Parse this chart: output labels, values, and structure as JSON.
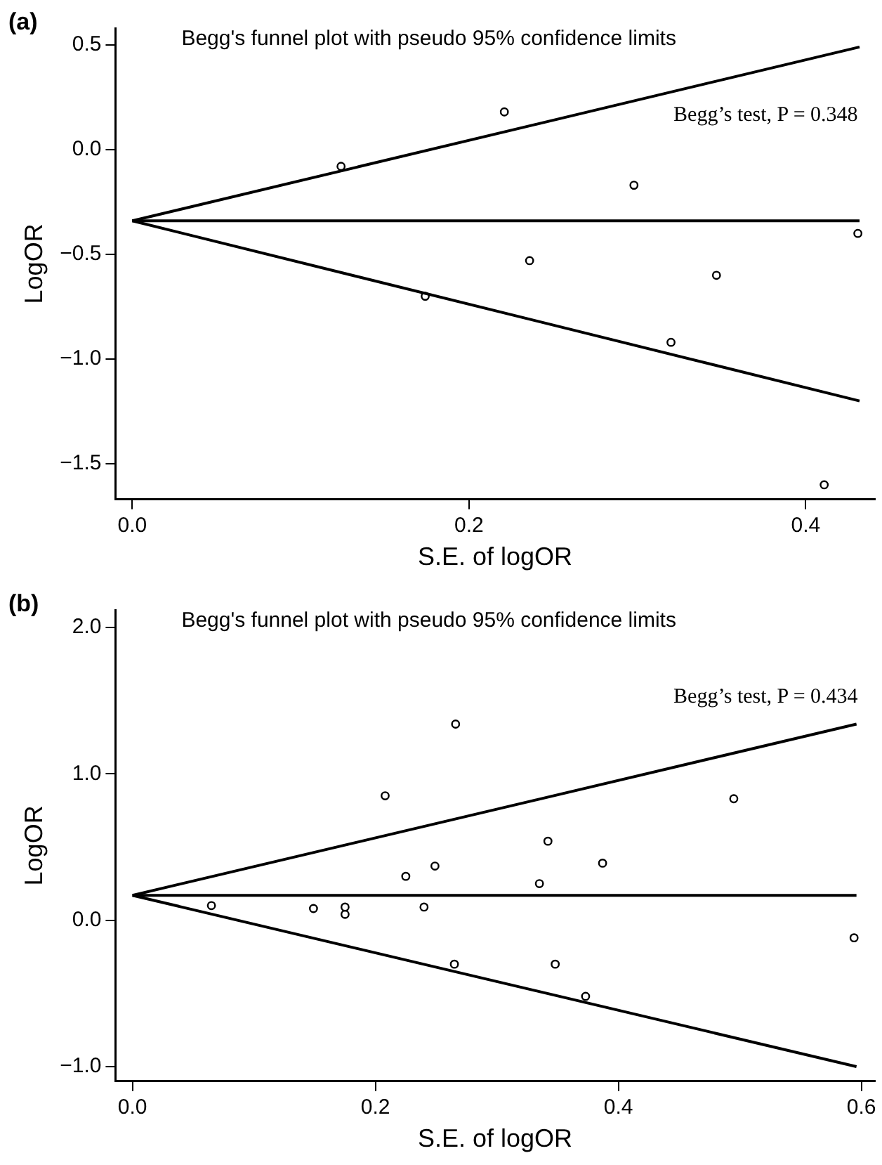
{
  "chart_data": [
    {
      "type": "scatter",
      "title": "Begg's funnel plot with pseudo 95% confidence limits",
      "xlabel": "S.E. of logOR",
      "ylabel": "LogOR",
      "annotations": [
        "(a)",
        "Begg’s test, P = 0.348"
      ],
      "xlim": [
        -0.01,
        0.441
      ],
      "ylim": [
        -1.67,
        0.58
      ],
      "xticks": [
        {
          "value": 0,
          "label": "0.0"
        },
        {
          "value": 0.2,
          "label": "0.2"
        },
        {
          "value": 0.4,
          "label": "0.4"
        }
      ],
      "yticks": [
        {
          "value": 0.5,
          "label": "0.5"
        },
        {
          "value": 0,
          "label": "0.0"
        },
        {
          "value": -0.5,
          "label": "−0.5"
        },
        {
          "value": -1,
          "label": "−1.0"
        },
        {
          "value": -1.5,
          "label": "−1.5"
        }
      ],
      "grid": false,
      "legend": false,
      "series": [
        {
          "marker": "circle",
          "color": "#000000",
          "x": [
            0.124,
            0.221,
            0.174,
            0.236,
            0.298,
            0.32,
            0.347,
            0.431,
            0.411
          ],
          "values": [
            -0.08,
            0.18,
            -0.7,
            -0.53,
            -0.17,
            -0.92,
            -0.6,
            -0.4,
            -1.6
          ]
        },
        {
          "type": "line",
          "marker": "none",
          "color": "#000000",
          "x": [
            0,
            0.432
          ],
          "values": [
            -0.34,
            0.49
          ]
        },
        {
          "type": "line",
          "marker": "none",
          "color": "#000000",
          "x": [
            0,
            0.432
          ],
          "values": [
            -0.34,
            -0.34
          ]
        },
        {
          "type": "line",
          "marker": "none",
          "color": "#000000",
          "x": [
            0,
            0.432
          ],
          "values": [
            -0.34,
            -1.2
          ]
        }
      ]
    },
    {
      "type": "scatter",
      "title": "Begg's funnel plot with pseudo 95% confidence limits",
      "xlabel": "S.E. of logOR",
      "ylabel": "LogOR",
      "annotations": [
        "(b)",
        "Begg’s test, P = 0.434"
      ],
      "xlim": [
        -0.014,
        0.611
      ],
      "ylim": [
        -1.1,
        2.12
      ],
      "xticks": [
        {
          "value": 0,
          "label": "0.0"
        },
        {
          "value": 0.2,
          "label": "0.2"
        },
        {
          "value": 0.4,
          "label": "0.4"
        },
        {
          "value": 0.6,
          "label": "0.6"
        }
      ],
      "yticks": [
        {
          "value": 2,
          "label": "2.0"
        },
        {
          "value": 1,
          "label": "1.0"
        },
        {
          "value": 0,
          "label": "0.0"
        },
        {
          "value": -1,
          "label": "−1.0"
        }
      ],
      "grid": false,
      "legend": false,
      "series": [
        {
          "marker": "circle",
          "color": "#000000",
          "x": [
            0.065,
            0.149,
            0.175,
            0.175,
            0.208,
            0.225,
            0.24,
            0.249,
            0.266,
            0.265,
            0.335,
            0.342,
            0.348,
            0.373,
            0.387,
            0.495,
            0.594
          ],
          "values": [
            0.1,
            0.08,
            0.09,
            0.04,
            0.85,
            0.3,
            0.09,
            0.37,
            1.34,
            -0.3,
            0.25,
            0.54,
            -0.3,
            -0.52,
            0.39,
            0.83,
            -0.12
          ]
        },
        {
          "type": "line",
          "marker": "none",
          "color": "#000000",
          "x": [
            0,
            0.596
          ],
          "values": [
            0.17,
            1.34
          ]
        },
        {
          "type": "line",
          "marker": "none",
          "color": "#000000",
          "x": [
            0,
            0.596
          ],
          "values": [
            0.17,
            0.17
          ]
        },
        {
          "type": "line",
          "marker": "none",
          "color": "#000000",
          "x": [
            0,
            0.596
          ],
          "values": [
            0.17,
            -1.0
          ]
        }
      ]
    }
  ]
}
